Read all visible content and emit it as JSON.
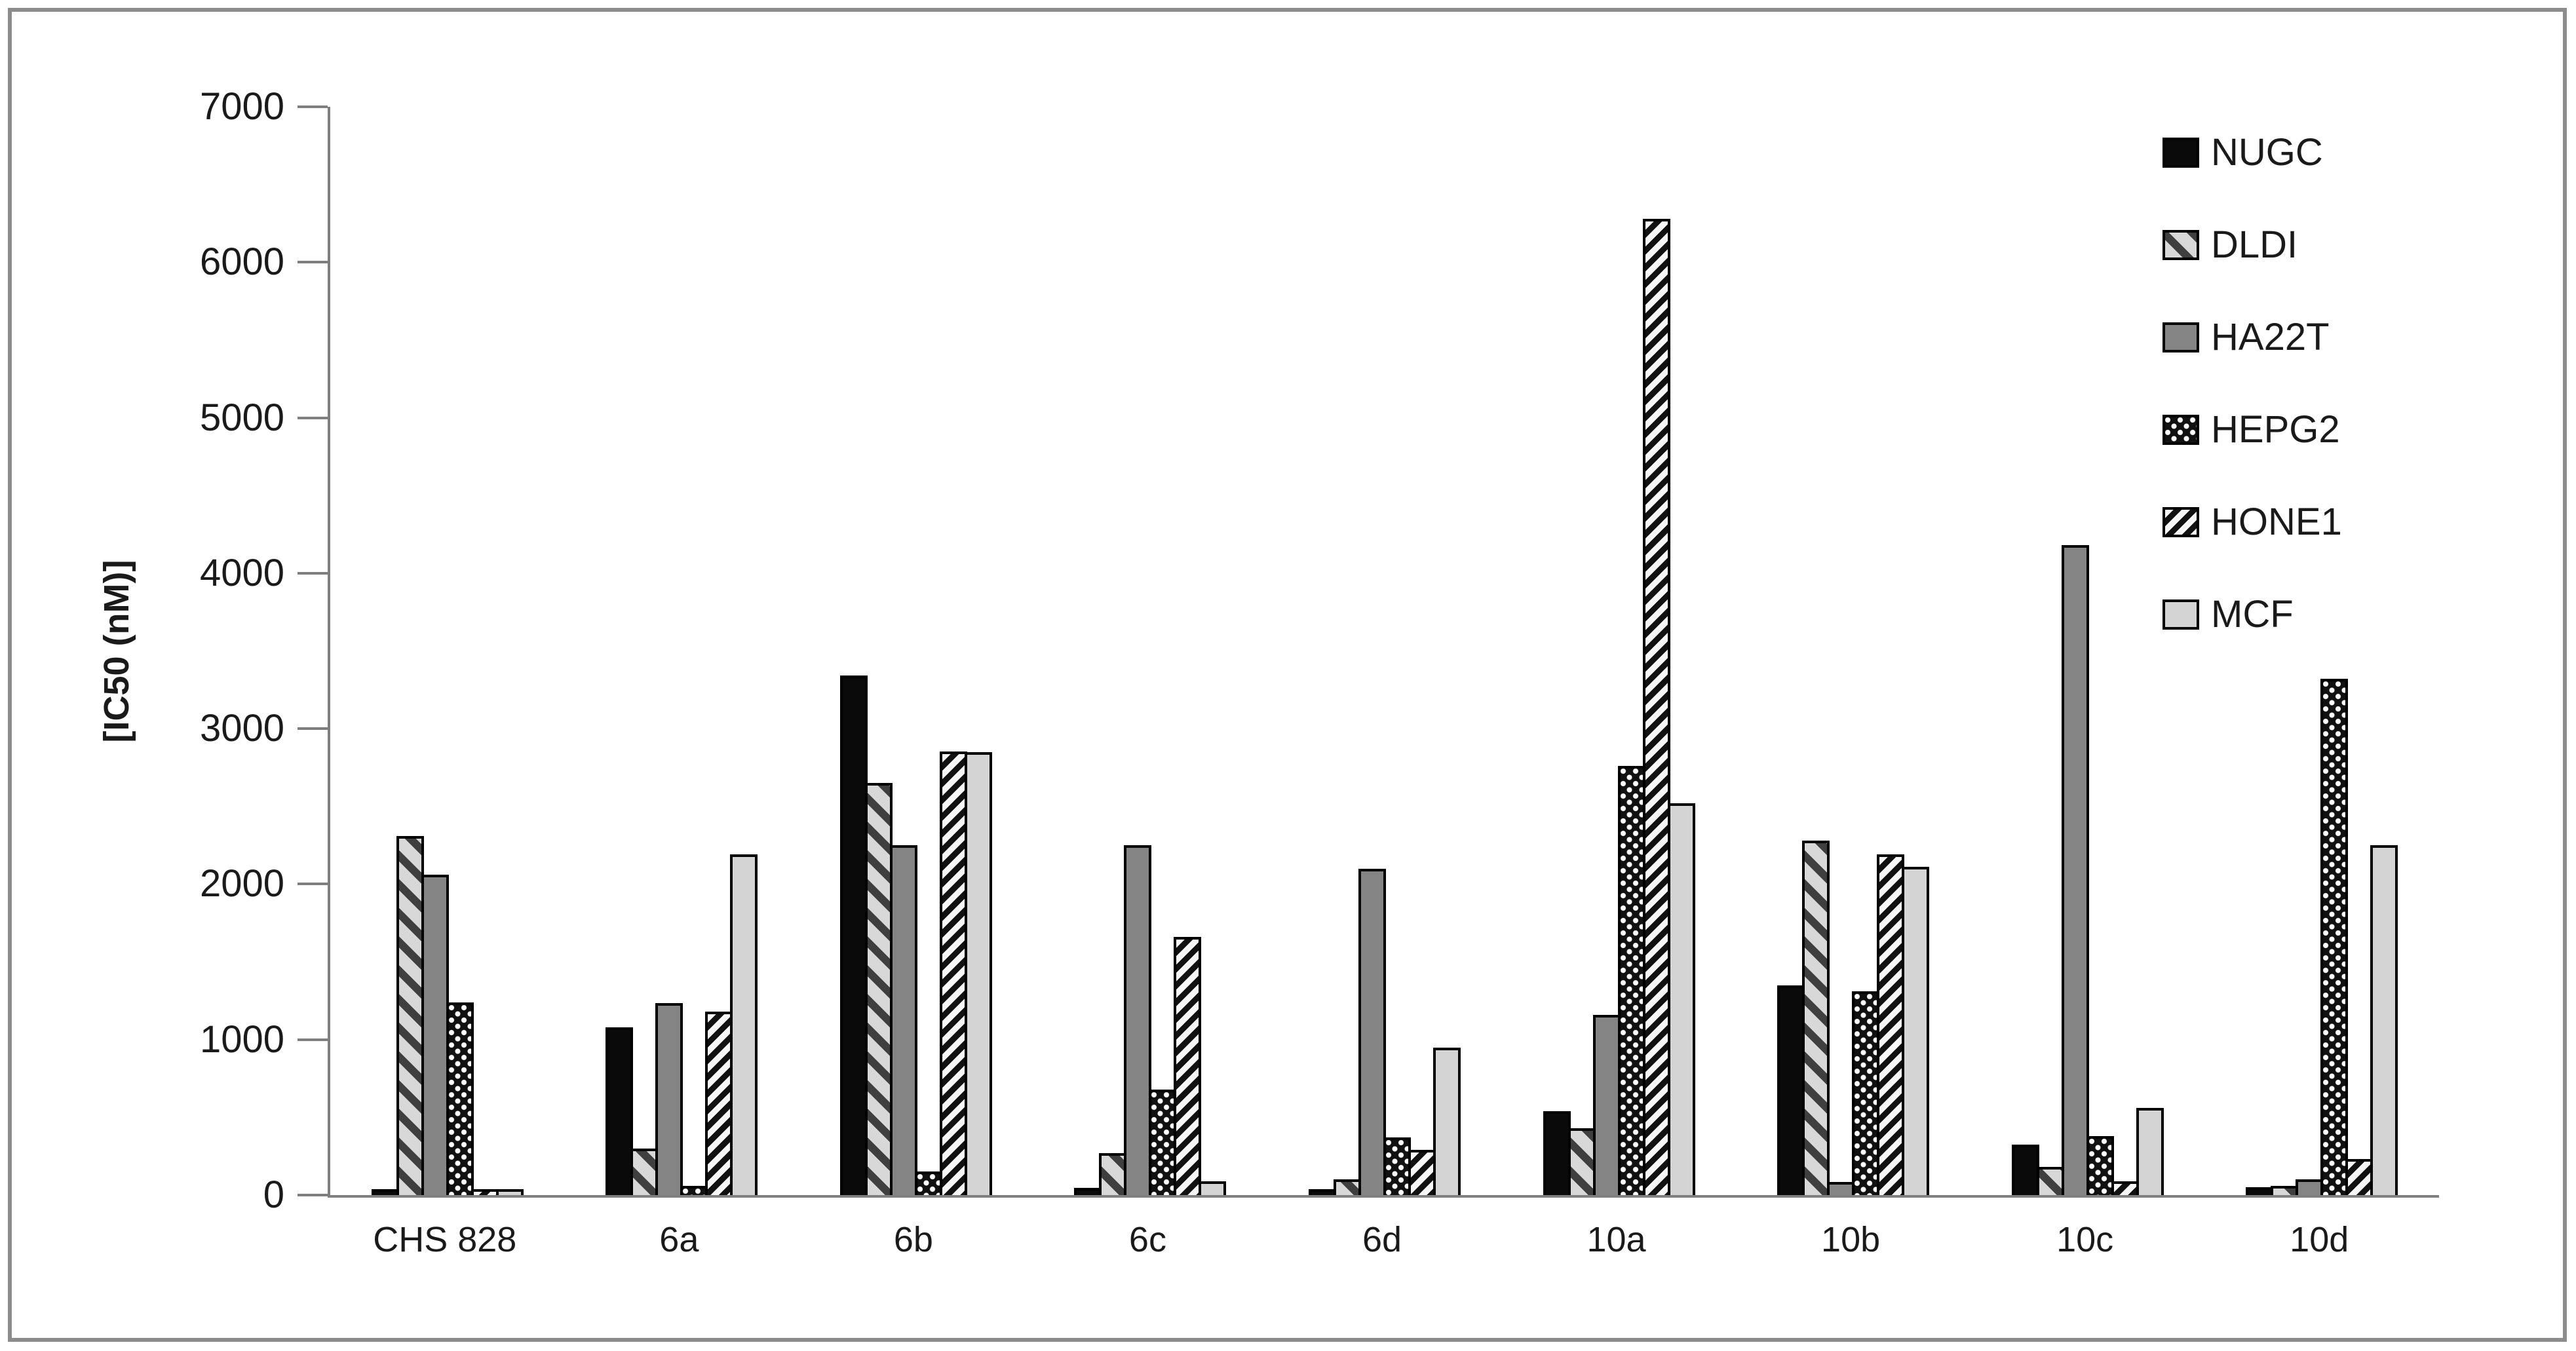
{
  "figure": {
    "frame_border_color": "#8c8c8c",
    "background": "#ffffff",
    "axis_color": "#7f7f7f",
    "text_color": "#1a1a1a"
  },
  "y_axis": {
    "title": "[IC50 (nM)]",
    "min": 0,
    "max": 7000,
    "tick_step": 1000
  },
  "chart_data": {
    "type": "bar",
    "title": "",
    "xlabel": "",
    "ylabel": "[IC50 (nM)]",
    "ylim": [
      0,
      7000
    ],
    "ytick_step": 1000,
    "grid": false,
    "legend_position": "right",
    "categories": [
      "CHS 828",
      "6a",
      "6b",
      "6c",
      "6d",
      "10a",
      "10b",
      "10c",
      "10d"
    ],
    "series": [
      {
        "name": "NUGC",
        "pattern": "solid-black",
        "fill": "#0a0a0a",
        "values": [
          30,
          1080,
          3340,
          45,
          30,
          540,
          1350,
          325,
          50
        ]
      },
      {
        "name": "DLDI",
        "pattern": "diagonal-wide",
        "fill": "#d8d8d8 with #3f3f3f wide diagonal stripes",
        "values": [
          2310,
          300,
          2650,
          270,
          100,
          430,
          2280,
          180,
          60
        ]
      },
      {
        "name": "HA22T",
        "pattern": "solid-gray",
        "fill": "#848484",
        "values": [
          2060,
          1235,
          2250,
          2250,
          2100,
          1160,
          85,
          4180,
          100
        ]
      },
      {
        "name": "HEPG2",
        "pattern": "dots",
        "fill": "#111111 with white dots",
        "values": [
          1240,
          60,
          150,
          680,
          370,
          2760,
          1310,
          380,
          3320
        ]
      },
      {
        "name": "HONE1",
        "pattern": "diagonal-thin",
        "fill": "white with #111111 thin diagonal stripes",
        "values": [
          25,
          1180,
          2855,
          1660,
          290,
          6280,
          2190,
          90,
          230
        ]
      },
      {
        "name": "MCF",
        "pattern": "solid-light",
        "fill": "#d4d4d4",
        "values": [
          20,
          2190,
          2850,
          90,
          950,
          2520,
          2110,
          560,
          2250
        ]
      }
    ]
  },
  "legend": {
    "entries": [
      "NUGC",
      "DLDI",
      "HA22T",
      "HEPG2",
      "HONE1",
      "MCF"
    ]
  }
}
